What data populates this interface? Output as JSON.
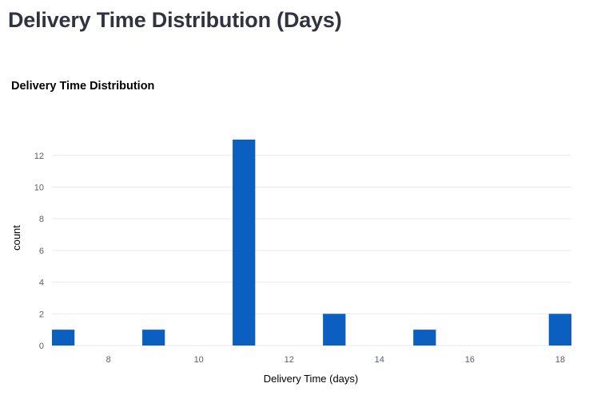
{
  "page": {
    "heading": "Delivery Time Distribution (Days)"
  },
  "chart_data": {
    "type": "bar",
    "title": "Delivery Time Distribution",
    "xlabel": "Delivery Time (days)",
    "ylabel": "count",
    "x": [
      7,
      9,
      11,
      13,
      15,
      18
    ],
    "values": [
      1,
      1,
      13,
      2,
      1,
      2
    ],
    "bin_width": 0.5,
    "xlim": [
      6.75,
      18.25
    ],
    "ylim": [
      0,
      13.5
    ],
    "xticks": [
      8,
      10,
      12,
      14,
      16,
      18
    ],
    "yticks": [
      0,
      2,
      4,
      6,
      8,
      10,
      12
    ],
    "grid": true,
    "colors": {
      "bar": "#0a5fc0",
      "grid": "#e6e9ef",
      "axis_text": "#5a5e6b",
      "title": "#262730"
    }
  }
}
